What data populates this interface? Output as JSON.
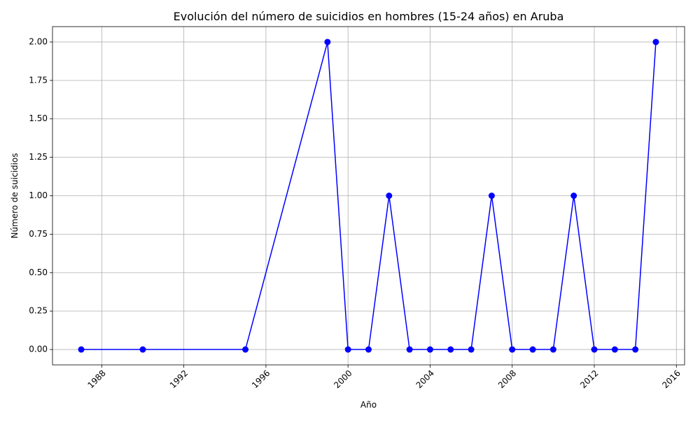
{
  "chart_data": {
    "type": "line",
    "title": "Evolución del número de suicidios en hombres (15-24 años) en Aruba",
    "xlabel": "Año",
    "ylabel": "Número de suicidios",
    "x_ticks": [
      1988,
      1992,
      1996,
      2000,
      2004,
      2008,
      2012,
      2016
    ],
    "y_ticks": [
      "0.00",
      "0.25",
      "0.50",
      "0.75",
      "1.00",
      "1.25",
      "1.50",
      "1.75",
      "2.00"
    ],
    "xlim": [
      1985.6,
      2016.4
    ],
    "ylim": [
      -0.1,
      2.1
    ],
    "grid": true,
    "series": [
      {
        "color": "#0000ff",
        "marker": "circle",
        "x": [
          1987,
          1990,
          1995,
          1999,
          2000,
          2001,
          2002,
          2003,
          2004,
          2005,
          2006,
          2007,
          2008,
          2009,
          2010,
          2011,
          2012,
          2013,
          2014,
          2015
        ],
        "y": [
          0,
          0,
          0,
          2,
          0,
          0,
          1,
          0,
          0,
          0,
          0,
          1,
          0,
          0,
          0,
          1,
          0,
          0,
          0,
          2
        ]
      }
    ]
  }
}
